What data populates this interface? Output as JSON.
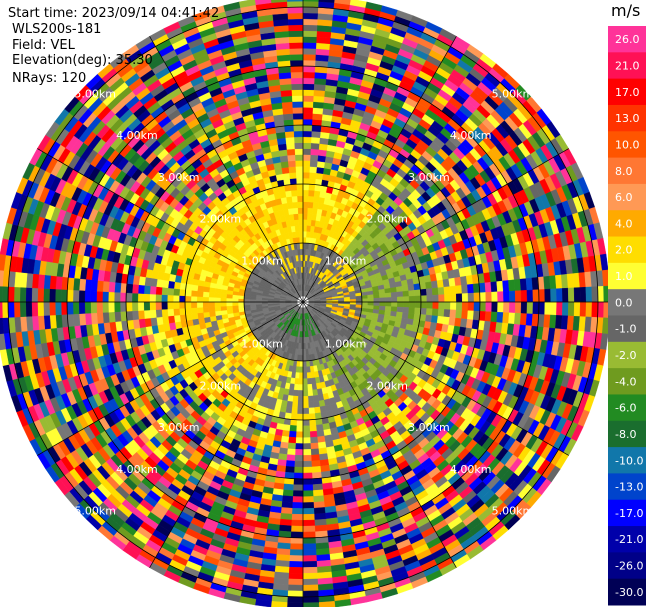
{
  "info": {
    "start_time": "Start time: 2023/09/14 04:41:42",
    "instrument": "WLS200s-181",
    "field": "Field: VEL",
    "elevation": "Elevation(deg): 35.30",
    "nrays": "NRays: 120"
  },
  "chart_data": {
    "type": "heatmap",
    "projection": "polar PPI",
    "field": "VEL",
    "units": "m/s",
    "nrays": 120,
    "range_rings_km": [
      1.0,
      2.0,
      3.0,
      4.0,
      5.0
    ],
    "ring_label_text": "{r}km",
    "spokes_deg": [
      0,
      30,
      60,
      90,
      120,
      150,
      180,
      210,
      240,
      270,
      300,
      330
    ],
    "colorbar": {
      "unit_label": "m/s",
      "tick_labels": [
        "26.0",
        "21.0",
        "17.0",
        "13.0",
        "10.0",
        "8.0",
        "6.0",
        "4.0",
        "2.0",
        "1.0",
        "0.0",
        "-1.0",
        "-2.0",
        "-4.0",
        "-6.0",
        "-8.0",
        "-10.0",
        "-13.0",
        "-17.0",
        "-21.0",
        "-26.0",
        "-30.0"
      ],
      "colors": [
        "#ff3399",
        "#ff1155",
        "#ff0000",
        "#ff3300",
        "#ff5500",
        "#ff7733",
        "#ff9955",
        "#ffaa00",
        "#ffdd00",
        "#ffff33",
        "#777777",
        "#666666",
        "#99bb33",
        "#6f9b1f",
        "#228b22",
        "#1a6e2e",
        "#1177aa",
        "#0044cc",
        "#0000ff",
        "#0000aa",
        "#000088",
        "#000055"
      ]
    },
    "approx_pattern": [
      {
        "region": "inner 0-1 km",
        "values": "-1 to 1 (gray) with small green core near center"
      },
      {
        "region": "1-2 km north/west",
        "values": "2 to 4 (yellow)"
      },
      {
        "region": "1-2 km east/south",
        "values": "-2 to -4 (olive green)"
      },
      {
        "region": "beyond ~2.5 km",
        "values": "noise spanning full -30 to 26 range"
      }
    ]
  }
}
